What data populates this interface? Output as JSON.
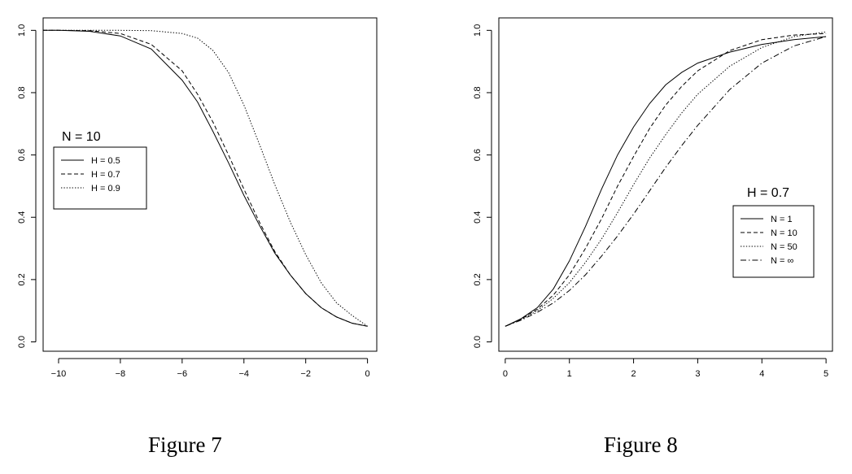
{
  "captions": {
    "left": "Figure 7",
    "right": "Figure 8"
  },
  "chart_data": [
    {
      "type": "line",
      "title": "",
      "xlabel": "",
      "ylabel": "",
      "xlim": [
        -10.5,
        0.3
      ],
      "ylim": [
        -0.03,
        1.04
      ],
      "xticks": [
        -10,
        -8,
        -6,
        -4,
        -2,
        0
      ],
      "xtick_labels": [
        "−10",
        "−8",
        "−6",
        "−4",
        "−2",
        "0"
      ],
      "yticks": [
        0.0,
        0.2,
        0.4,
        0.6,
        0.8,
        1.0
      ],
      "ytick_labels": [
        "0.0",
        "0.2",
        "0.4",
        "0.6",
        "0.8",
        "1.0"
      ],
      "grid": false,
      "legend": {
        "position": "left-middle",
        "title": "N = 10"
      },
      "series": [
        {
          "name": "H = 0.5",
          "style": "solid",
          "x": [
            -10.5,
            -10,
            -9,
            -8,
            -7,
            -6,
            -5.5,
            -5,
            -4.5,
            -4,
            -3.5,
            -3,
            -2.5,
            -2,
            -1.5,
            -1,
            -0.5,
            0
          ],
          "y": [
            1.0,
            1.0,
            0.997,
            0.982,
            0.94,
            0.84,
            0.77,
            0.675,
            0.575,
            0.47,
            0.375,
            0.285,
            0.215,
            0.155,
            0.11,
            0.08,
            0.06,
            0.05
          ]
        },
        {
          "name": "H = 0.7",
          "style": "dashed",
          "x": [
            -10.5,
            -10,
            -9,
            -8,
            -7,
            -6,
            -5.5,
            -5,
            -4.5,
            -4,
            -3.5,
            -3,
            -2.5,
            -2,
            -1.5,
            -1,
            -0.5,
            0
          ],
          "y": [
            1.0,
            1.0,
            0.999,
            0.99,
            0.955,
            0.87,
            0.795,
            0.705,
            0.6,
            0.49,
            0.385,
            0.29,
            0.215,
            0.155,
            0.11,
            0.08,
            0.06,
            0.05
          ]
        },
        {
          "name": "H = 0.9",
          "style": "dotted",
          "x": [
            -10.5,
            -10,
            -9,
            -8,
            -7,
            -6,
            -5.5,
            -5,
            -4.5,
            -4,
            -3.5,
            -3,
            -2.5,
            -2,
            -1.5,
            -1,
            -0.5,
            0
          ],
          "y": [
            1.0,
            1.0,
            1.0,
            1.0,
            0.999,
            0.99,
            0.975,
            0.935,
            0.865,
            0.76,
            0.635,
            0.505,
            0.385,
            0.28,
            0.19,
            0.125,
            0.085,
            0.05
          ]
        }
      ]
    },
    {
      "type": "line",
      "title": "",
      "xlabel": "",
      "ylabel": "",
      "xlim": [
        -0.1,
        5.1
      ],
      "ylim": [
        -0.03,
        1.04
      ],
      "xticks": [
        0,
        1,
        2,
        3,
        4,
        5
      ],
      "xtick_labels": [
        "0",
        "1",
        "2",
        "3",
        "4",
        "5"
      ],
      "yticks": [
        0.0,
        0.2,
        0.4,
        0.6,
        0.8,
        1.0
      ],
      "ytick_labels": [
        "0.0",
        "0.2",
        "0.4",
        "0.6",
        "0.8",
        "1.0"
      ],
      "grid": false,
      "legend": {
        "position": "right-middle",
        "title": "H = 0.7"
      },
      "series": [
        {
          "name": "N = 1",
          "style": "solid",
          "x": [
            0,
            0.25,
            0.5,
            0.75,
            1,
            1.25,
            1.5,
            1.75,
            2,
            2.25,
            2.5,
            2.75,
            3,
            3.5,
            4,
            4.5,
            5
          ],
          "y": [
            0.05,
            0.075,
            0.11,
            0.17,
            0.26,
            0.37,
            0.49,
            0.6,
            0.69,
            0.765,
            0.825,
            0.865,
            0.895,
            0.93,
            0.955,
            0.97,
            0.98
          ]
        },
        {
          "name": "N = 10",
          "style": "dashed",
          "x": [
            0,
            0.25,
            0.5,
            0.75,
            1,
            1.25,
            1.5,
            1.75,
            2,
            2.25,
            2.5,
            2.75,
            3,
            3.5,
            4,
            4.5,
            5
          ],
          "y": [
            0.05,
            0.073,
            0.105,
            0.15,
            0.215,
            0.3,
            0.395,
            0.5,
            0.595,
            0.685,
            0.76,
            0.82,
            0.87,
            0.935,
            0.97,
            0.985,
            0.99
          ]
        },
        {
          "name": "N = 50",
          "style": "dotted",
          "x": [
            0,
            0.25,
            0.5,
            0.75,
            1,
            1.25,
            1.5,
            1.75,
            2,
            2.25,
            2.5,
            2.75,
            3,
            3.5,
            4,
            4.5,
            5
          ],
          "y": [
            0.05,
            0.072,
            0.1,
            0.14,
            0.19,
            0.255,
            0.33,
            0.415,
            0.505,
            0.59,
            0.665,
            0.735,
            0.795,
            0.885,
            0.945,
            0.98,
            0.995
          ]
        },
        {
          "name": "N = ∞",
          "style": "dotdash",
          "x": [
            0,
            0.25,
            0.5,
            0.75,
            1,
            1.25,
            1.5,
            1.75,
            2,
            2.25,
            2.5,
            2.75,
            3,
            3.5,
            4,
            4.5,
            5
          ],
          "y": [
            0.05,
            0.07,
            0.095,
            0.125,
            0.165,
            0.215,
            0.275,
            0.34,
            0.41,
            0.485,
            0.56,
            0.63,
            0.695,
            0.81,
            0.895,
            0.95,
            0.98
          ]
        }
      ]
    }
  ]
}
